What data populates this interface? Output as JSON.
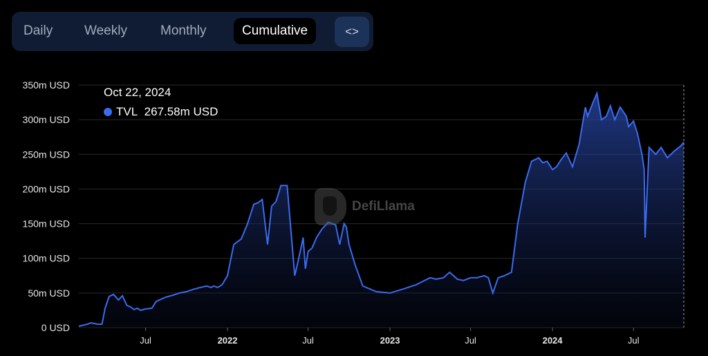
{
  "tabs": [
    {
      "label": "Daily"
    },
    {
      "label": "Weekly"
    },
    {
      "label": "Monthly"
    },
    {
      "label": "Cumulative",
      "active": true
    }
  ],
  "embed_icon": "code-brackets-icon",
  "watermark": {
    "text": "DefiLlama",
    "icon": "llama-logo-icon"
  },
  "tooltip": {
    "date": "Oct 22, 2024",
    "series": "TVL",
    "value": "267.58m USD"
  },
  "colors": {
    "line": "#3b6cf0",
    "background": "#000000",
    "tabbar": "#0f1c33"
  },
  "chart_data": {
    "type": "area",
    "title": "",
    "xlabel": "",
    "ylabel": "",
    "ylim": [
      0,
      350
    ],
    "y_unit": "m USD",
    "y_ticks": [
      "0 USD",
      "50m USD",
      "100m USD",
      "150m USD",
      "200m USD",
      "250m USD",
      "300m USD",
      "350m USD"
    ],
    "x_ticks": [
      {
        "label": "Jul",
        "date": "2021-07-01",
        "bold": false
      },
      {
        "label": "2022",
        "date": "2022-01-01",
        "bold": true
      },
      {
        "label": "Jul",
        "date": "2022-07-01",
        "bold": false
      },
      {
        "label": "2023",
        "date": "2023-01-01",
        "bold": true
      },
      {
        "label": "Jul",
        "date": "2023-07-01",
        "bold": false
      },
      {
        "label": "2024",
        "date": "2024-01-01",
        "bold": true
      },
      {
        "label": "Jul",
        "date": "2024-07-01",
        "bold": false
      }
    ],
    "grid": true,
    "series": [
      {
        "name": "TVL",
        "x": [
          "2021-02-01",
          "2021-02-20",
          "2021-03-01",
          "2021-03-15",
          "2021-03-25",
          "2021-04-01",
          "2021-04-10",
          "2021-04-20",
          "2021-05-01",
          "2021-05-10",
          "2021-05-20",
          "2021-05-28",
          "2021-06-05",
          "2021-06-12",
          "2021-06-20",
          "2021-07-01",
          "2021-07-15",
          "2021-07-25",
          "2021-08-01",
          "2021-08-15",
          "2021-09-01",
          "2021-09-15",
          "2021-10-01",
          "2021-10-15",
          "2021-11-01",
          "2021-11-15",
          "2021-11-25",
          "2021-12-01",
          "2021-12-10",
          "2021-12-20",
          "2022-01-01",
          "2022-01-15",
          "2022-02-01",
          "2022-02-15",
          "2022-03-01",
          "2022-03-10",
          "2022-03-20",
          "2022-04-01",
          "2022-04-10",
          "2022-04-20",
          "2022-05-01",
          "2022-05-15",
          "2022-06-01",
          "2022-06-10",
          "2022-06-20",
          "2022-06-25",
          "2022-07-01",
          "2022-07-10",
          "2022-07-20",
          "2022-08-01",
          "2022-08-15",
          "2022-08-25",
          "2022-09-01",
          "2022-09-10",
          "2022-09-20",
          "2022-09-25",
          "2022-10-01",
          "2022-10-15",
          "2022-11-01",
          "2022-12-01",
          "2023-01-01",
          "2023-02-01",
          "2023-03-01",
          "2023-04-01",
          "2023-04-15",
          "2023-05-01",
          "2023-05-15",
          "2023-06-01",
          "2023-06-15",
          "2023-07-01",
          "2023-07-15",
          "2023-08-01",
          "2023-08-10",
          "2023-08-20",
          "2023-09-01",
          "2023-09-15",
          "2023-10-01",
          "2023-10-15",
          "2023-11-01",
          "2023-11-15",
          "2023-12-01",
          "2023-12-10",
          "2023-12-20",
          "2024-01-01",
          "2024-01-10",
          "2024-01-20",
          "2024-02-01",
          "2024-02-15",
          "2024-03-01",
          "2024-03-10",
          "2024-03-15",
          "2024-03-20",
          "2024-04-01",
          "2024-04-10",
          "2024-04-20",
          "2024-05-01",
          "2024-05-10",
          "2024-05-20",
          "2024-06-01",
          "2024-06-15",
          "2024-06-20",
          "2024-07-01",
          "2024-07-10",
          "2024-07-20",
          "2024-07-25",
          "2024-07-27",
          "2024-08-05",
          "2024-08-20",
          "2024-09-01",
          "2024-09-15",
          "2024-10-01",
          "2024-10-15",
          "2024-10-22"
        ],
        "values": [
          2,
          5,
          7,
          5,
          5,
          28,
          45,
          48,
          40,
          46,
          32,
          30,
          26,
          28,
          25,
          27,
          28,
          38,
          40,
          44,
          47,
          50,
          52,
          55,
          58,
          60,
          58,
          60,
          58,
          62,
          75,
          120,
          128,
          150,
          178,
          180,
          185,
          120,
          175,
          182,
          205,
          205,
          75,
          100,
          130,
          85,
          110,
          115,
          130,
          142,
          152,
          150,
          148,
          120,
          150,
          145,
          120,
          90,
          60,
          52,
          50,
          56,
          62,
          72,
          70,
          72,
          80,
          70,
          68,
          72,
          72,
          75,
          72,
          50,
          72,
          75,
          80,
          150,
          210,
          240,
          245,
          238,
          240,
          228,
          232,
          242,
          252,
          232,
          265,
          300,
          318,
          305,
          325,
          338,
          300,
          305,
          320,
          300,
          318,
          305,
          290,
          298,
          280,
          250,
          228,
          130,
          260,
          250,
          260,
          245,
          255,
          262,
          267.58
        ]
      }
    ]
  }
}
